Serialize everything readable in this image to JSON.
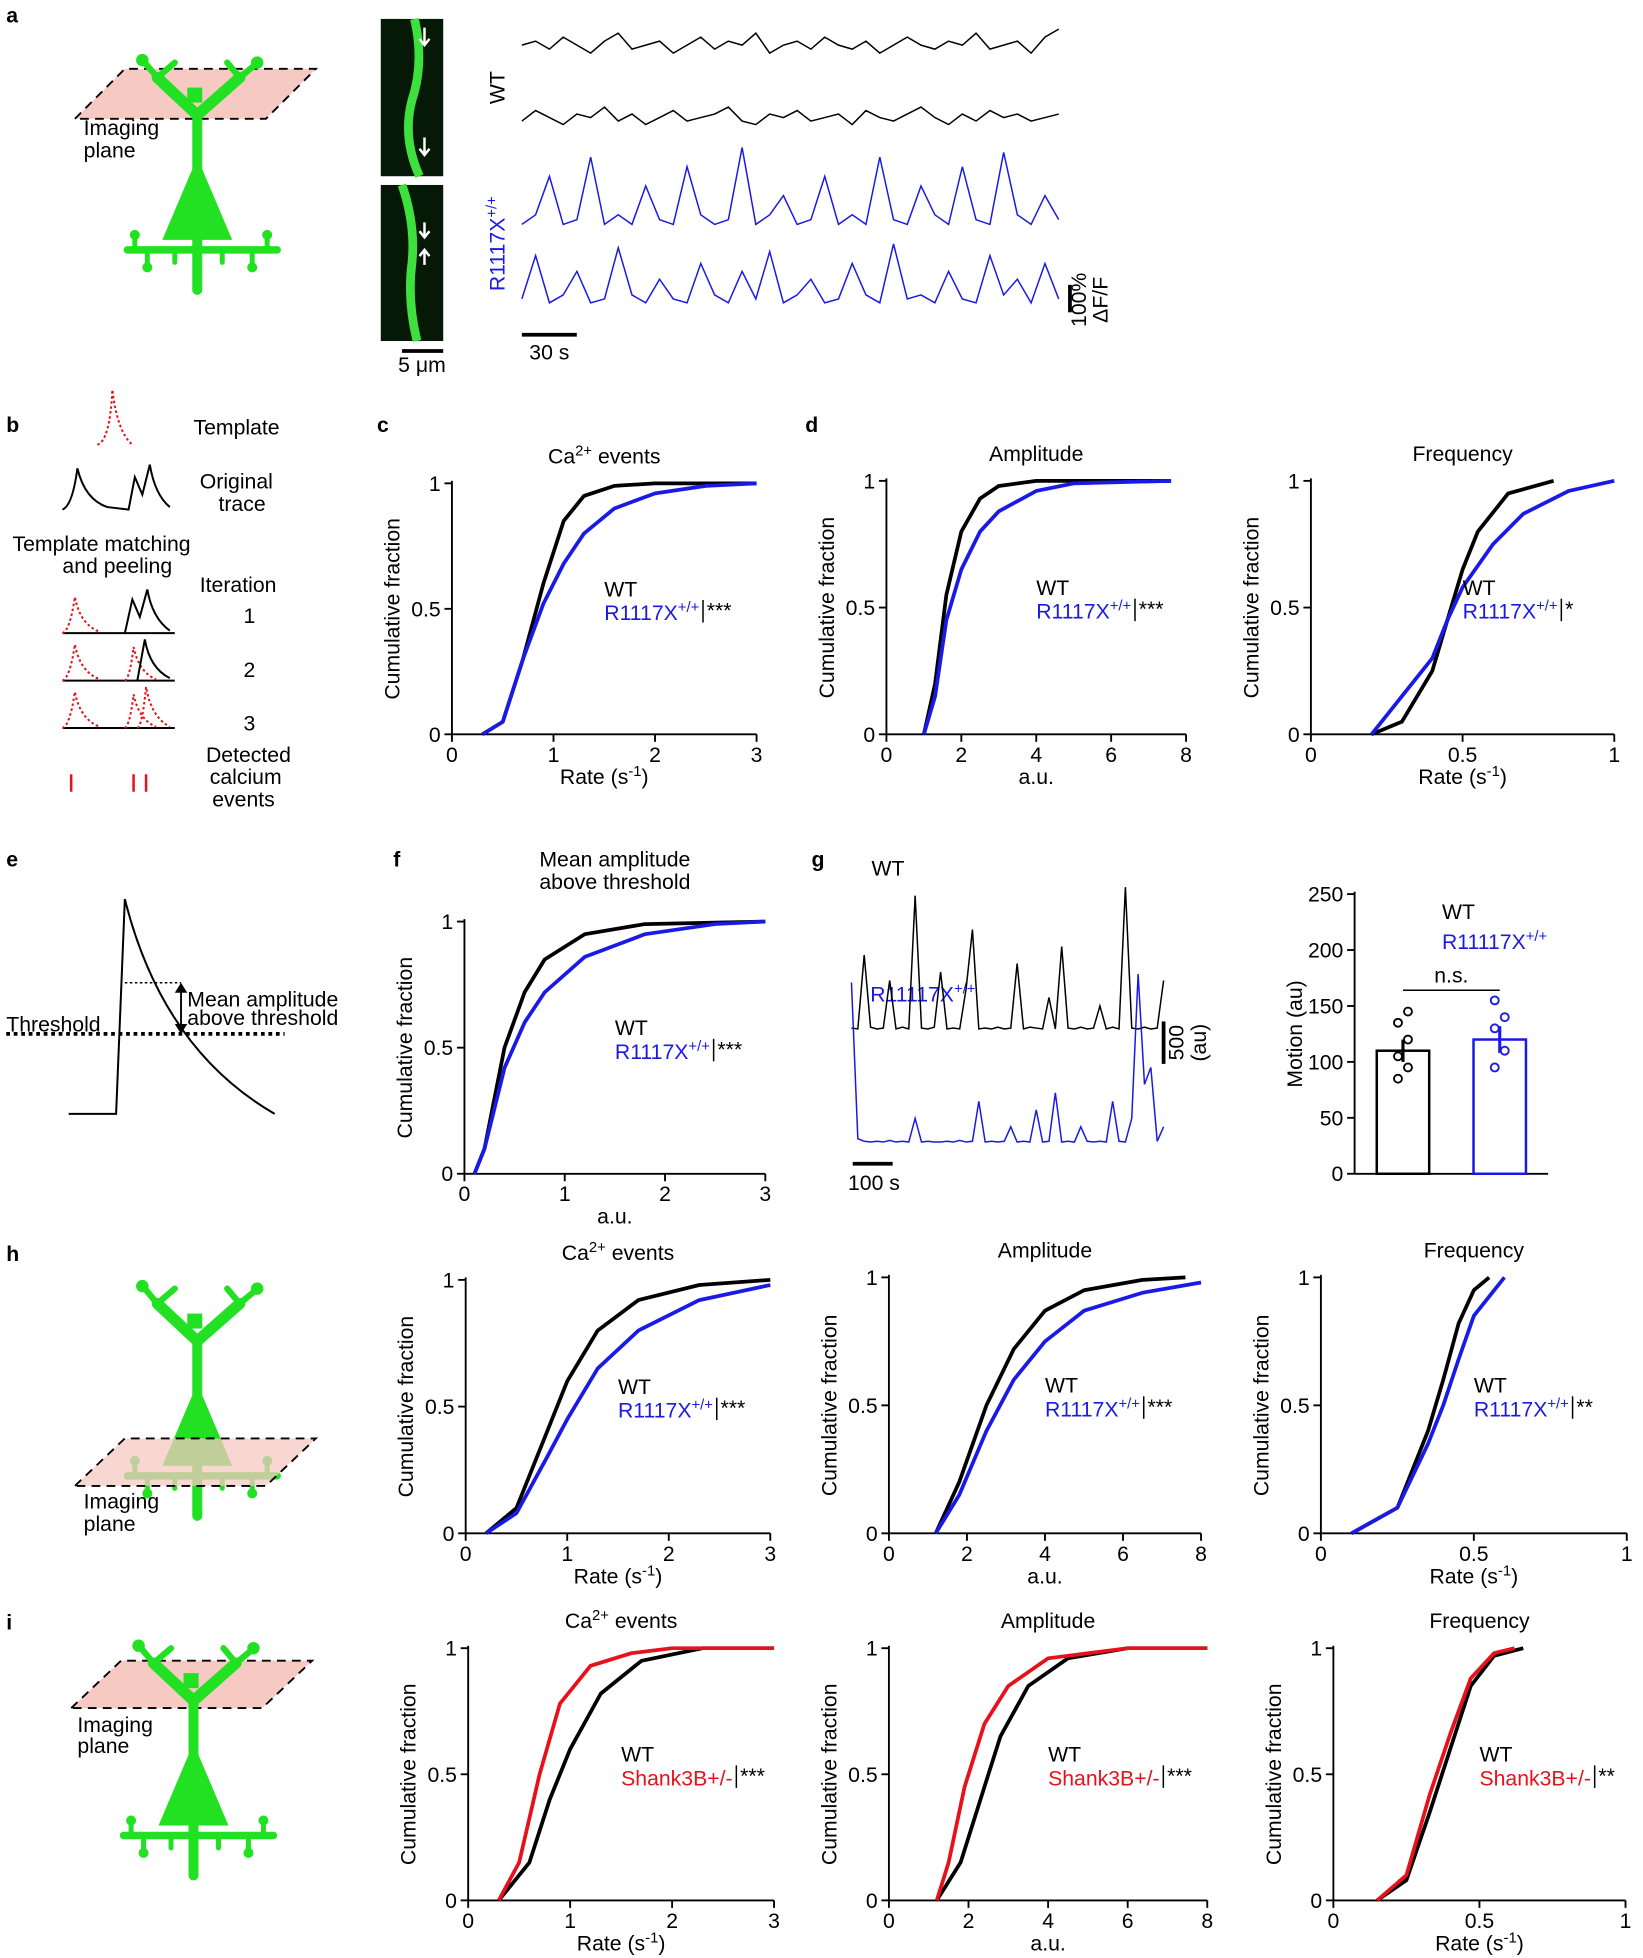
{
  "panel_labels": [
    "a",
    "b",
    "c",
    "d",
    "e",
    "f",
    "g",
    "h",
    "i"
  ],
  "a": {
    "imaging_plane": [
      "Imaging",
      "plane"
    ],
    "genotypes": [
      "WT",
      "R1117X+/+"
    ],
    "scale_image": "5 μm",
    "scale_time": "30 s",
    "scale_amp": [
      "100%",
      "ΔF/F"
    ],
    "traces": [
      {
        "color": "#000000",
        "values": [
          0.5,
          0.6,
          0.4,
          0.7,
          0.5,
          0.3,
          0.6,
          0.8,
          0.4,
          0.5,
          0.6,
          0.3,
          0.5,
          0.7,
          0.4,
          0.6,
          0.5,
          0.8,
          0.3,
          0.5,
          0.6,
          0.4,
          0.7,
          0.5,
          0.4,
          0.6,
          0.3,
          0.5,
          0.7,
          0.5,
          0.4,
          0.6,
          0.5,
          0.8,
          0.4,
          0.5,
          0.6,
          0.3,
          0.7,
          0.9
        ]
      },
      {
        "color": "#000000",
        "values": [
          0.4,
          0.7,
          0.5,
          0.3,
          0.6,
          0.5,
          0.8,
          0.4,
          0.6,
          0.3,
          0.5,
          0.7,
          0.4,
          0.5,
          0.6,
          0.8,
          0.4,
          0.3,
          0.6,
          0.5,
          0.7,
          0.4,
          0.5,
          0.6,
          0.3,
          0.7,
          0.5,
          0.4,
          0.6,
          0.8,
          0.5,
          0.3,
          0.6,
          0.4,
          0.7,
          0.5,
          0.6,
          0.4,
          0.5,
          0.6
        ]
      },
      {
        "color": "#1a1ae6",
        "values": [
          0.2,
          0.3,
          0.7,
          0.2,
          0.25,
          0.9,
          0.2,
          0.3,
          0.2,
          0.6,
          0.25,
          0.2,
          0.8,
          0.3,
          0.2,
          0.25,
          1,
          0.2,
          0.3,
          0.5,
          0.2,
          0.25,
          0.7,
          0.2,
          0.3,
          0.2,
          0.9,
          0.25,
          0.2,
          0.6,
          0.3,
          0.2,
          0.8,
          0.25,
          0.2,
          0.95,
          0.3,
          0.2,
          0.5,
          0.25
        ]
      },
      {
        "color": "#1a1ae6",
        "values": [
          0.25,
          0.8,
          0.2,
          0.3,
          0.6,
          0.2,
          0.25,
          0.9,
          0.3,
          0.2,
          0.5,
          0.25,
          0.2,
          0.7,
          0.3,
          0.2,
          0.6,
          0.25,
          0.85,
          0.2,
          0.3,
          0.5,
          0.2,
          0.25,
          0.7,
          0.3,
          0.2,
          0.95,
          0.25,
          0.3,
          0.2,
          0.6,
          0.25,
          0.2,
          0.8,
          0.3,
          0.5,
          0.2,
          0.7,
          0.25
        ]
      }
    ]
  },
  "b": {
    "template": "Template",
    "original": [
      "Original",
      "trace"
    ],
    "matching": [
      "Template matching",
      "and peeling"
    ],
    "iteration": "Iteration",
    "iterations": [
      "1",
      "2",
      "3"
    ],
    "detected": [
      "Detected",
      "calcium",
      "events"
    ]
  },
  "e": {
    "threshold": "Threshold",
    "mean_amplitude": [
      "Mean amplitude",
      "above threshold"
    ]
  },
  "g": {
    "scale_amp": [
      "500",
      "(au)"
    ],
    "scale_time": "100 s",
    "traces": [
      {
        "name": "WT",
        "color": "#000000",
        "values": [
          40,
          30,
          900,
          50,
          30,
          40,
          600,
          30,
          50,
          30,
          1600,
          40,
          30,
          50,
          700,
          30,
          40,
          30,
          500,
          1200,
          30,
          40,
          30,
          50,
          30,
          40,
          800,
          30,
          50,
          40,
          30,
          400,
          30,
          1000,
          40,
          30,
          50,
          30,
          40,
          300,
          30,
          50,
          30,
          1700,
          40,
          30,
          50,
          30,
          40,
          600
        ]
      },
      {
        "name": "R11117X+/+",
        "color": "#1a1ae6",
        "values": [
          1900,
          60,
          30,
          20,
          30,
          20,
          40,
          20,
          30,
          20,
          300,
          20,
          30,
          20,
          20,
          30,
          20,
          40,
          20,
          30,
          500,
          20,
          30,
          20,
          30,
          200,
          20,
          30,
          20,
          400,
          20,
          30,
          600,
          20,
          30,
          20,
          200,
          30,
          20,
          30,
          20,
          500,
          30,
          20,
          300,
          2000,
          700,
          900,
          30,
          200
        ]
      }
    ]
  },
  "h": {
    "imaging_plane": [
      "Imaging",
      "plane"
    ]
  },
  "i": {
    "imaging_plane": [
      "Imaging",
      "plane"
    ]
  },
  "chart_data": [
    {
      "type": "line",
      "title": "Ca2+ events",
      "xlabel": "Rate  (s-1)",
      "ylabel": "Cumulative fraction",
      "xlim": [
        0,
        3
      ],
      "xticks": [
        0,
        1,
        2,
        3
      ],
      "ylim": [
        0,
        1
      ],
      "yticks": [
        0,
        0.5,
        1
      ],
      "significance": "***",
      "series": [
        {
          "name": "WT",
          "color": "#000000",
          "x": [
            0.3,
            0.5,
            0.7,
            0.9,
            1.1,
            1.3,
            1.6,
            2,
            3
          ],
          "values": [
            0,
            0.05,
            0.3,
            0.6,
            0.85,
            0.95,
            0.99,
            1,
            1
          ]
        },
        {
          "name": "R1117X+/+",
          "color": "#1a1ae6",
          "x": [
            0.3,
            0.5,
            0.7,
            0.9,
            1.1,
            1.3,
            1.6,
            2,
            2.5,
            3
          ],
          "values": [
            0,
            0.05,
            0.3,
            0.52,
            0.68,
            0.8,
            0.9,
            0.96,
            0.99,
            1
          ]
        }
      ]
    },
    {
      "type": "line",
      "title": "Amplitude",
      "xlabel": "a.u.",
      "ylabel": "Cumulative fraction",
      "xlim": [
        0,
        8
      ],
      "xticks": [
        0,
        2,
        4,
        6,
        8
      ],
      "ylim": [
        0,
        1
      ],
      "yticks": [
        0,
        0.5,
        1
      ],
      "significance": "***",
      "series": [
        {
          "name": "WT",
          "color": "#000000",
          "x": [
            1.0,
            1.3,
            1.6,
            2,
            2.5,
            3,
            4,
            7.6
          ],
          "values": [
            0,
            0.2,
            0.55,
            0.8,
            0.93,
            0.98,
            1,
            1
          ]
        },
        {
          "name": "R1117X+/+",
          "color": "#1a1ae6",
          "x": [
            1.0,
            1.3,
            1.6,
            2,
            2.5,
            3,
            4,
            5,
            7.6
          ],
          "values": [
            0,
            0.15,
            0.45,
            0.65,
            0.8,
            0.88,
            0.96,
            0.99,
            1
          ]
        }
      ]
    },
    {
      "type": "line",
      "title": "Frequency",
      "xlabel": "Rate  (s-1)",
      "ylabel": "Cumulative fraction",
      "xlim": [
        0,
        1
      ],
      "xticks": [
        0,
        0.5,
        1
      ],
      "ylim": [
        0,
        1
      ],
      "yticks": [
        0,
        0.5,
        1
      ],
      "significance": "*",
      "series": [
        {
          "name": "WT",
          "color": "#000000",
          "x": [
            0.2,
            0.3,
            0.4,
            0.45,
            0.5,
            0.55,
            0.65,
            0.8
          ],
          "values": [
            0,
            0.05,
            0.25,
            0.45,
            0.65,
            0.8,
            0.95,
            1
          ]
        },
        {
          "name": "R1117X+/+",
          "color": "#1a1ae6",
          "x": [
            0.2,
            0.3,
            0.4,
            0.45,
            0.5,
            0.6,
            0.7,
            0.85,
            1
          ],
          "values": [
            0,
            0.15,
            0.3,
            0.45,
            0.58,
            0.75,
            0.87,
            0.96,
            1
          ]
        }
      ]
    },
    {
      "type": "line",
      "title": [
        "Mean amplitude",
        "above threshold"
      ],
      "xlabel": "a.u.",
      "ylabel": "Cumulative fraction",
      "xlim": [
        0,
        3
      ],
      "xticks": [
        0,
        1,
        2,
        3
      ],
      "ylim": [
        0,
        1
      ],
      "yticks": [
        0,
        0.5,
        1
      ],
      "significance": "***",
      "series": [
        {
          "name": "WT",
          "color": "#000000",
          "x": [
            0.1,
            0.2,
            0.4,
            0.6,
            0.8,
            1.2,
            1.8,
            3
          ],
          "values": [
            0,
            0.1,
            0.5,
            0.72,
            0.85,
            0.95,
            0.99,
            1
          ]
        },
        {
          "name": "R1117X+/+",
          "color": "#1a1ae6",
          "x": [
            0.1,
            0.2,
            0.4,
            0.6,
            0.8,
            1.2,
            1.8,
            2.5,
            3
          ],
          "values": [
            0,
            0.1,
            0.42,
            0.6,
            0.72,
            0.86,
            0.95,
            0.99,
            1
          ]
        }
      ]
    },
    {
      "type": "bar",
      "ylabel": "Motion (au)",
      "ylim": [
        0,
        250
      ],
      "yticks": [
        0,
        50,
        100,
        150,
        200,
        250
      ],
      "annotation": "n.s.",
      "series": [
        {
          "name": "WT",
          "color": "#000000",
          "values": [
            110
          ],
          "errors": [
            10
          ],
          "points": [
            85,
            95,
            105,
            120,
            135,
            145
          ]
        },
        {
          "name": "R11117X+/+",
          "color": "#1a1ae6",
          "values": [
            120
          ],
          "errors": [
            12
          ],
          "points": [
            95,
            110,
            130,
            140,
            155
          ]
        }
      ]
    },
    {
      "type": "line",
      "title": "Ca2+ events",
      "xlabel": "Rate  (s-1)",
      "ylabel": "Cumulative fraction",
      "xlim": [
        0,
        3
      ],
      "xticks": [
        0,
        1,
        2,
        3
      ],
      "ylim": [
        0,
        1
      ],
      "yticks": [
        0,
        0.5,
        1
      ],
      "significance": "***",
      "series": [
        {
          "name": "WT",
          "color": "#000000",
          "x": [
            0.2,
            0.5,
            0.8,
            1,
            1.3,
            1.7,
            2.3,
            3
          ],
          "values": [
            0,
            0.1,
            0.4,
            0.6,
            0.8,
            0.92,
            0.98,
            1
          ]
        },
        {
          "name": "R1117X+/+",
          "color": "#1a1ae6",
          "x": [
            0.2,
            0.5,
            0.8,
            1,
            1.3,
            1.7,
            2.3,
            3
          ],
          "values": [
            0,
            0.08,
            0.3,
            0.45,
            0.65,
            0.8,
            0.92,
            0.98
          ]
        }
      ]
    },
    {
      "type": "line",
      "title": "Amplitude",
      "xlabel": "a.u.",
      "ylabel": "Cumulative fraction",
      "xlim": [
        0,
        8
      ],
      "xticks": [
        0,
        2,
        4,
        6,
        8
      ],
      "ylim": [
        0,
        1
      ],
      "yticks": [
        0,
        0.5,
        1
      ],
      "significance": "***",
      "series": [
        {
          "name": "WT",
          "color": "#000000",
          "x": [
            1.2,
            1.8,
            2.5,
            3.2,
            4,
            5,
            6.5,
            7.6
          ],
          "values": [
            0,
            0.2,
            0.5,
            0.72,
            0.87,
            0.95,
            0.99,
            1
          ]
        },
        {
          "name": "R1117X+/+",
          "color": "#1a1ae6",
          "x": [
            1.2,
            1.8,
            2.5,
            3.2,
            4,
            5,
            6.5,
            8
          ],
          "values": [
            0,
            0.15,
            0.4,
            0.6,
            0.75,
            0.87,
            0.94,
            0.98
          ]
        }
      ]
    },
    {
      "type": "line",
      "title": "Frequency",
      "xlabel": "Rate  (s-1)",
      "ylabel": "Cumulative fraction",
      "xlim": [
        0,
        1
      ],
      "xticks": [
        0,
        0.5,
        1
      ],
      "ylim": [
        0,
        1
      ],
      "yticks": [
        0,
        0.5,
        1
      ],
      "significance": "**",
      "series": [
        {
          "name": "WT",
          "color": "#000000",
          "x": [
            0.1,
            0.25,
            0.35,
            0.4,
            0.45,
            0.5,
            0.55
          ],
          "values": [
            0,
            0.1,
            0.4,
            0.6,
            0.82,
            0.95,
            1
          ]
        },
        {
          "name": "R1117X+/+",
          "color": "#1a1ae6",
          "x": [
            0.1,
            0.25,
            0.35,
            0.4,
            0.45,
            0.5,
            0.6
          ],
          "values": [
            0,
            0.1,
            0.35,
            0.5,
            0.68,
            0.85,
            1
          ]
        }
      ]
    },
    {
      "type": "line",
      "title": "Ca2+ events",
      "xlabel": "Rate  (s-1)",
      "ylabel": "Cumulative fraction",
      "xlim": [
        0,
        3
      ],
      "xticks": [
        0,
        1,
        2,
        3
      ],
      "ylim": [
        0,
        1
      ],
      "yticks": [
        0,
        0.5,
        1
      ],
      "significance": "***",
      "series": [
        {
          "name": "WT",
          "color": "#000000",
          "x": [
            0.3,
            0.6,
            0.8,
            1,
            1.3,
            1.7,
            2.3,
            3
          ],
          "values": [
            0,
            0.15,
            0.4,
            0.6,
            0.82,
            0.95,
            1,
            1
          ]
        },
        {
          "name": "Shank3B+/-",
          "color": "#e8101a",
          "x": [
            0.3,
            0.5,
            0.7,
            0.9,
            1.2,
            1.6,
            2,
            3
          ],
          "values": [
            0,
            0.15,
            0.5,
            0.78,
            0.93,
            0.98,
            1,
            1
          ]
        }
      ]
    },
    {
      "type": "line",
      "title": "Amplitude",
      "xlabel": "a.u.",
      "ylabel": "Cumulative fraction",
      "xlim": [
        0,
        8
      ],
      "xticks": [
        0,
        2,
        4,
        6,
        8
      ],
      "ylim": [
        0,
        1
      ],
      "yticks": [
        0,
        0.5,
        1
      ],
      "significance": "***",
      "series": [
        {
          "name": "WT",
          "color": "#000000",
          "x": [
            1.2,
            1.8,
            2.3,
            2.8,
            3.5,
            4.5,
            6,
            8
          ],
          "values": [
            0,
            0.15,
            0.4,
            0.65,
            0.85,
            0.96,
            1,
            1
          ]
        },
        {
          "name": "Shank3B+/-",
          "color": "#e8101a",
          "x": [
            1.2,
            1.5,
            1.9,
            2.4,
            3,
            4,
            6,
            8
          ],
          "values": [
            0,
            0.15,
            0.45,
            0.7,
            0.85,
            0.96,
            1,
            1
          ]
        }
      ]
    },
    {
      "type": "line",
      "title": "Frequency",
      "xlabel": "Rate  (s-1)",
      "ylabel": "Cumulative fraction",
      "xlim": [
        0,
        1
      ],
      "xticks": [
        0,
        0.5,
        1
      ],
      "ylim": [
        0,
        1
      ],
      "yticks": [
        0,
        0.5,
        1
      ],
      "significance": "**",
      "series": [
        {
          "name": "WT",
          "color": "#000000",
          "x": [
            0.15,
            0.25,
            0.33,
            0.4,
            0.47,
            0.55,
            0.65
          ],
          "values": [
            0,
            0.08,
            0.35,
            0.6,
            0.85,
            0.97,
            1
          ]
        },
        {
          "name": "Shank3B+/-",
          "color": "#e8101a",
          "x": [
            0.15,
            0.25,
            0.33,
            0.4,
            0.47,
            0.55,
            0.62
          ],
          "values": [
            0,
            0.1,
            0.42,
            0.66,
            0.88,
            0.98,
            1
          ]
        }
      ]
    }
  ]
}
